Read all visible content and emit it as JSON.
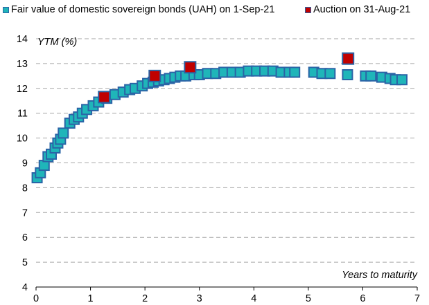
{
  "chart_data": {
    "type": "scatter",
    "title": "",
    "xlabel": "Years to maturity",
    "ylabel": "YTM (%)",
    "xlim": [
      0,
      7
    ],
    "ylim": [
      4,
      14
    ],
    "x_ticks": [
      "0",
      "1",
      "2",
      "3",
      "4",
      "5",
      "6",
      "7"
    ],
    "y_ticks": [
      "4",
      "5",
      "6",
      "7",
      "8",
      "9",
      "10",
      "11",
      "12",
      "13",
      "14"
    ],
    "grid": "horizontal dashed",
    "legend_position": "top",
    "series": [
      {
        "name": "Fair value of domestic sovereign bonds (UAH) on 1-Sep-21",
        "color": "#1fb5b9",
        "border_color": "#2a64a6",
        "points": [
          [
            0.02,
            8.4
          ],
          [
            0.08,
            8.6
          ],
          [
            0.15,
            8.9
          ],
          [
            0.22,
            9.25
          ],
          [
            0.28,
            9.35
          ],
          [
            0.35,
            9.6
          ],
          [
            0.4,
            9.8
          ],
          [
            0.45,
            9.95
          ],
          [
            0.5,
            10.2
          ],
          [
            0.62,
            10.6
          ],
          [
            0.7,
            10.75
          ],
          [
            0.78,
            10.85
          ],
          [
            0.85,
            11.0
          ],
          [
            0.93,
            11.15
          ],
          [
            1.05,
            11.3
          ],
          [
            1.15,
            11.45
          ],
          [
            1.3,
            11.6
          ],
          [
            1.45,
            11.75
          ],
          [
            1.6,
            11.85
          ],
          [
            1.72,
            11.95
          ],
          [
            1.82,
            12.0
          ],
          [
            1.95,
            12.1
          ],
          [
            2.05,
            12.2
          ],
          [
            2.15,
            12.25
          ],
          [
            2.25,
            12.3
          ],
          [
            2.35,
            12.35
          ],
          [
            2.45,
            12.4
          ],
          [
            2.55,
            12.45
          ],
          [
            2.65,
            12.5
          ],
          [
            2.75,
            12.5
          ],
          [
            2.9,
            12.55
          ],
          [
            3.0,
            12.55
          ],
          [
            3.15,
            12.6
          ],
          [
            3.3,
            12.6
          ],
          [
            3.45,
            12.65
          ],
          [
            3.6,
            12.65
          ],
          [
            3.75,
            12.65
          ],
          [
            3.9,
            12.7
          ],
          [
            4.05,
            12.7
          ],
          [
            4.2,
            12.7
          ],
          [
            4.35,
            12.7
          ],
          [
            4.5,
            12.65
          ],
          [
            4.65,
            12.65
          ],
          [
            4.75,
            12.65
          ],
          [
            5.1,
            12.65
          ],
          [
            5.25,
            12.6
          ],
          [
            5.4,
            12.6
          ],
          [
            5.72,
            12.55
          ],
          [
            6.05,
            12.5
          ],
          [
            6.15,
            12.5
          ],
          [
            6.35,
            12.45
          ],
          [
            6.5,
            12.4
          ],
          [
            6.6,
            12.35
          ],
          [
            6.72,
            12.35
          ]
        ]
      },
      {
        "name": "Auction on 31-Aug-21",
        "color": "#c00000",
        "border_color": "#2a64a6",
        "points": [
          [
            1.25,
            11.65
          ],
          [
            2.18,
            12.5
          ],
          [
            2.83,
            12.85
          ],
          [
            5.73,
            13.2
          ]
        ]
      }
    ]
  }
}
